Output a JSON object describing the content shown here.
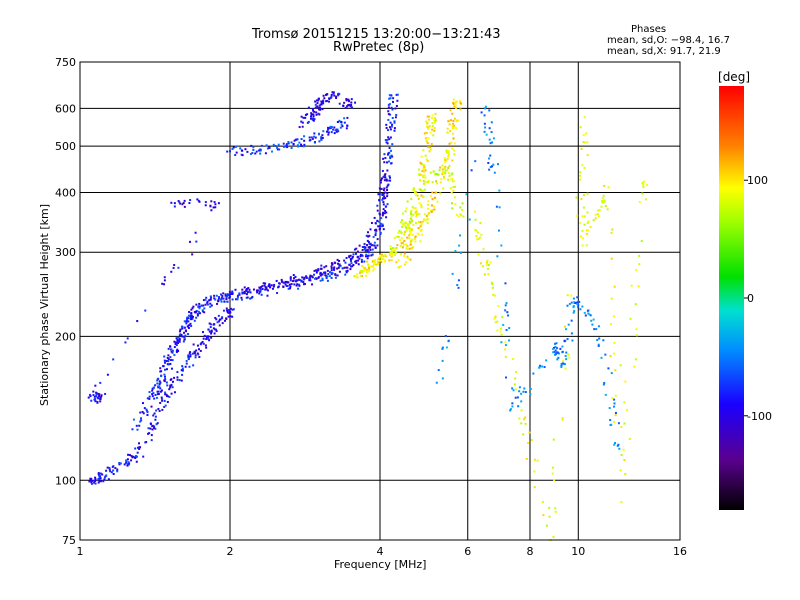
{
  "chart_data": {
    "type": "scatter",
    "title": "Tromsø 20151215 13:20:00−13:21:43",
    "subtitle": "RwPretec (8p)",
    "xlabel": "Frequency [MHz]",
    "ylabel": "Stationary phase Virtual Height [km]",
    "x_scale": "log",
    "y_scale": "log",
    "xlim": [
      1,
      16
    ],
    "ylim": [
      75,
      750
    ],
    "x_ticks": [
      "1",
      "2",
      "4",
      "6",
      "8",
      "10",
      "16"
    ],
    "y_ticks": [
      "75",
      "100",
      "200",
      "300",
      "400",
      "500",
      "600",
      "750"
    ],
    "grid": true,
    "colorbar": {
      "label": "deg",
      "ticks": [
        "100",
        "0",
        "-100"
      ],
      "range": [
        -180,
        180
      ]
    },
    "stats": {
      "heading": "Phases",
      "line_o": "mean, sd,O: −98.4, 16.7",
      "line_x": "mean, sd,X:  91.7, 21.9"
    },
    "traces": [
      {
        "name": "",
        "phase": -100,
        "points": [
          [
            1.05,
            100
          ],
          [
            1.1,
            101
          ],
          [
            1.2,
            108
          ],
          [
            1.3,
            112
          ],
          [
            1.4,
            130
          ],
          [
            1.5,
            150
          ],
          [
            1.6,
            170
          ],
          [
            1.7,
            185
          ],
          [
            1.8,
            200
          ],
          [
            1.9,
            215
          ],
          [
            2.0,
            225
          ]
        ]
      },
      {
        "name": "",
        "phase": -95,
        "points": [
          [
            1.3,
            130
          ],
          [
            1.4,
            150
          ],
          [
            1.45,
            160
          ],
          [
            1.5,
            175
          ],
          [
            1.55,
            190
          ],
          [
            1.6,
            200
          ],
          [
            1.65,
            215
          ],
          [
            1.7,
            225
          ],
          [
            1.8,
            235
          ],
          [
            1.9,
            240
          ],
          [
            2.0,
            242
          ],
          [
            2.3,
            248
          ],
          [
            2.6,
            255
          ],
          [
            2.9,
            262
          ],
          [
            3.2,
            270
          ],
          [
            3.5,
            280
          ],
          [
            3.8,
            300
          ],
          [
            4.0,
            340
          ],
          [
            4.1,
            400
          ],
          [
            4.15,
            480
          ],
          [
            4.2,
            560
          ],
          [
            4.25,
            630
          ]
        ]
      },
      {
        "name": "",
        "phase": -110,
        "points": [
          [
            2.0,
            245
          ],
          [
            2.3,
            252
          ],
          [
            2.6,
            260
          ],
          [
            2.9,
            268
          ],
          [
            3.2,
            278
          ],
          [
            3.5,
            290
          ],
          [
            3.8,
            315
          ],
          [
            4.0,
            360
          ],
          [
            4.1,
            430
          ]
        ]
      },
      {
        "name": "",
        "phase": -90,
        "points": [
          [
            2.0,
            488
          ],
          [
            2.3,
            492
          ],
          [
            2.6,
            500
          ],
          [
            2.9,
            515
          ],
          [
            3.2,
            535
          ],
          [
            3.4,
            560
          ]
        ]
      },
      {
        "name": "",
        "phase": -105,
        "points": [
          [
            2.8,
            560
          ],
          [
            2.95,
            590
          ],
          [
            3.05,
            620
          ],
          [
            3.2,
            640
          ],
          [
            3.5,
            610
          ]
        ]
      },
      {
        "name": "",
        "phase": -105,
        "points": [
          [
            1.55,
            380
          ],
          [
            1.9,
            380
          ],
          [
            1.05,
            150
          ],
          [
            1.1,
            148
          ]
        ]
      },
      {
        "name": "",
        "phase": 90,
        "points": [
          [
            3.6,
            270
          ],
          [
            3.8,
            280
          ],
          [
            4.0,
            288
          ],
          [
            4.3,
            300
          ],
          [
            4.6,
            330
          ],
          [
            4.8,
            380
          ],
          [
            4.9,
            450
          ],
          [
            5.0,
            520
          ],
          [
            5.1,
            580
          ]
        ]
      },
      {
        "name": "",
        "phase": 95,
        "points": [
          [
            4.4,
            280
          ],
          [
            4.7,
            320
          ],
          [
            5.0,
            360
          ],
          [
            5.3,
            420
          ],
          [
            5.5,
            480
          ],
          [
            5.6,
            550
          ],
          [
            5.7,
            620
          ]
        ]
      },
      {
        "name": "",
        "phase": 70,
        "points": [
          [
            4.2,
            300
          ],
          [
            4.5,
            340
          ],
          [
            4.7,
            400
          ],
          [
            5.4,
            450
          ],
          [
            5.8,
            360
          ]
        ]
      },
      {
        "name": "",
        "phase": -60,
        "points": [
          [
            5.2,
            160
          ],
          [
            6.5,
            600
          ],
          [
            6.8,
            440
          ],
          [
            7.3,
            140
          ],
          [
            9.0,
            190
          ],
          [
            9.4,
            175
          ],
          [
            9.8,
            240
          ],
          [
            11.0,
            210
          ],
          [
            12.0,
            118
          ]
        ]
      },
      {
        "name": "",
        "phase": 80,
        "points": [
          [
            6.2,
            365
          ],
          [
            6.6,
            270
          ],
          [
            7.5,
            155
          ],
          [
            8.8,
            75
          ],
          [
            10.3,
            575
          ],
          [
            10.2,
            310
          ],
          [
            11.5,
            410
          ],
          [
            12.2,
            90
          ],
          [
            13.5,
            415
          ]
        ]
      }
    ]
  }
}
